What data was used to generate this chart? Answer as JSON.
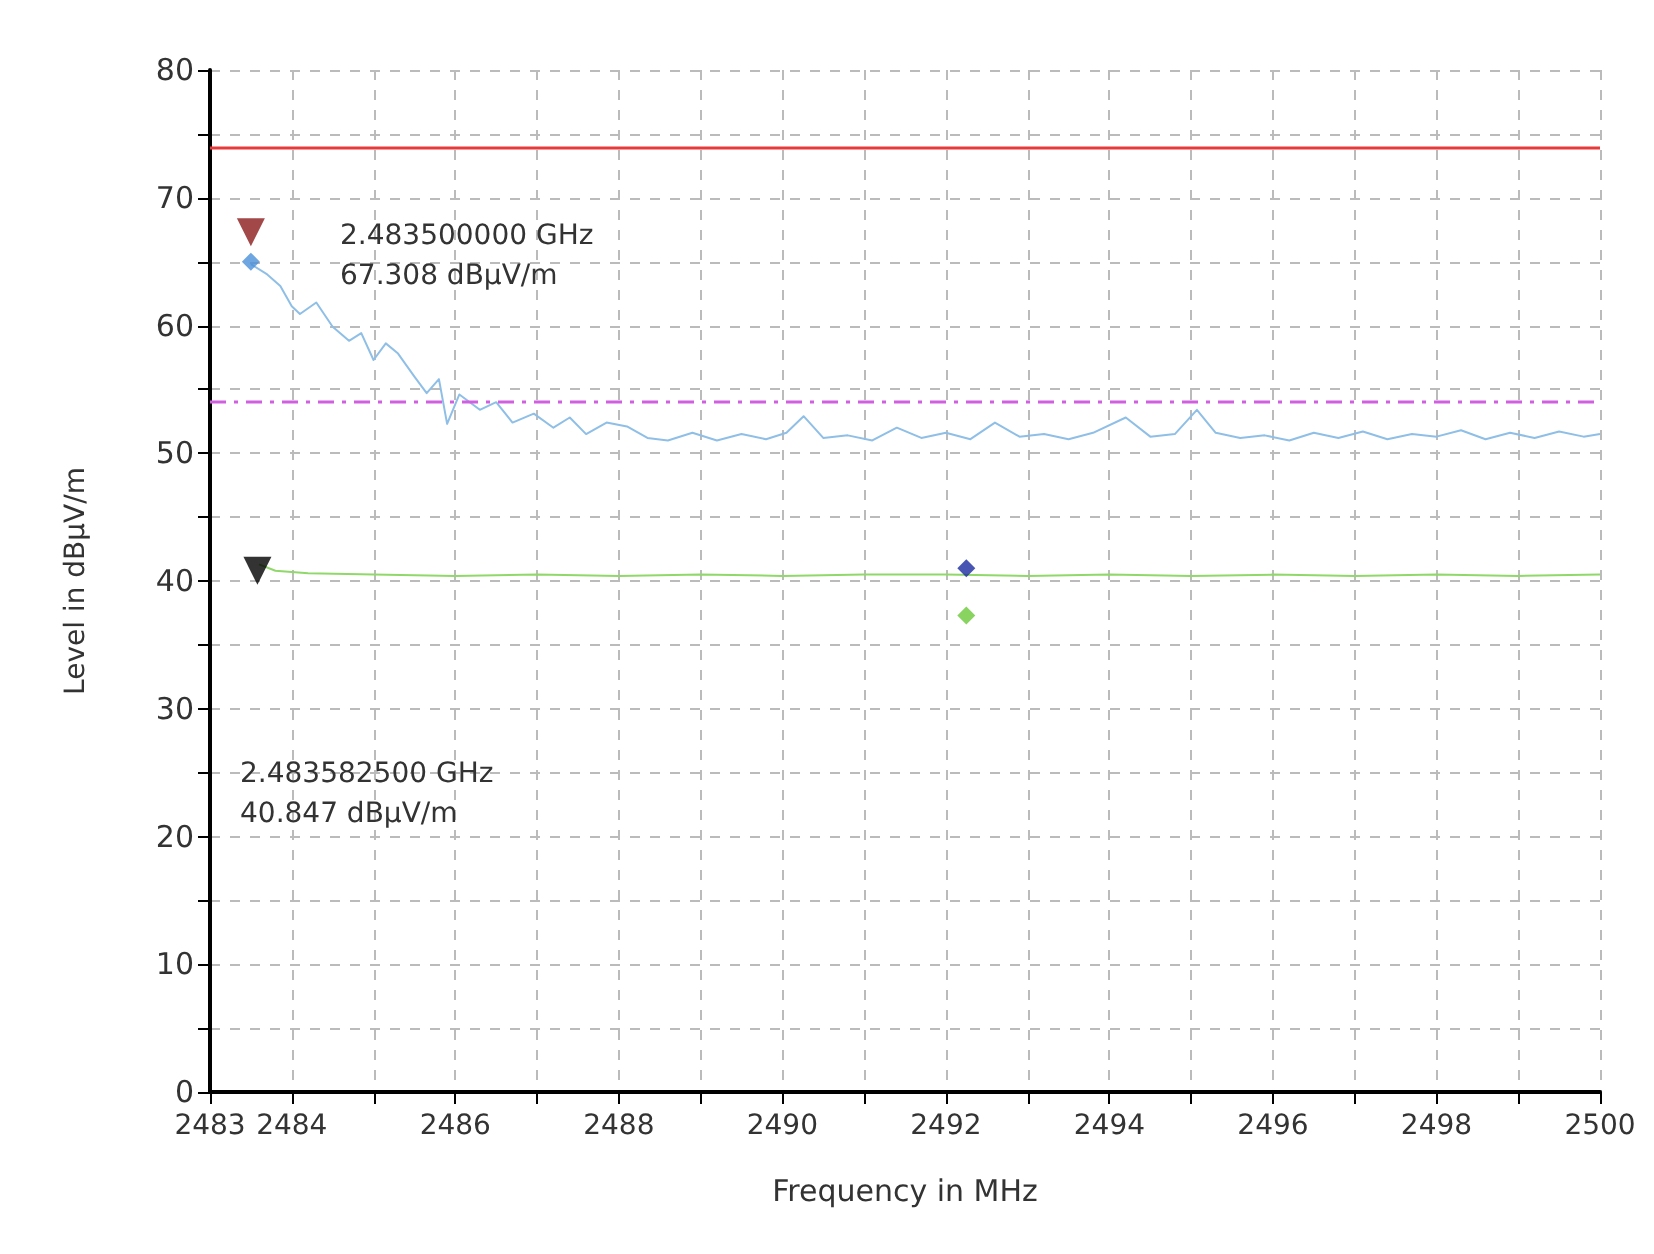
{
  "chart_data": {
    "type": "line",
    "xlabel": "Frequency in MHz",
    "ylabel": "Level in dBµV/m",
    "xlim": [
      2483,
      2500
    ],
    "xticks": [
      2483,
      2484,
      {
        "value": 2485,
        "label": null
      },
      2486,
      {
        "value": 2487,
        "label": null
      },
      2488,
      {
        "value": 2489,
        "label": null
      },
      2490,
      {
        "value": 2491,
        "label": null
      },
      2492,
      {
        "value": 2493,
        "label": null
      },
      2494,
      {
        "value": 2495,
        "label": null
      },
      2496,
      {
        "value": 2497,
        "label": null
      },
      2498,
      {
        "value": 2499,
        "label": null
      },
      2500
    ],
    "ylim": [
      0,
      80
    ],
    "yticks": [
      0,
      {
        "value": 5,
        "label": null
      },
      10,
      {
        "value": 15,
        "label": null
      },
      20,
      {
        "value": 25,
        "label": null
      },
      30,
      {
        "value": 35,
        "label": null
      },
      40,
      {
        "value": 45,
        "label": null
      },
      50,
      {
        "value": 55,
        "label": null
      },
      60,
      {
        "value": 65,
        "label": null
      },
      70,
      {
        "value": 75,
        "label": null
      },
      80
    ],
    "grid": true,
    "marker": "none",
    "line_style": "solid",
    "series": [
      {
        "color": "#8fbfe6",
        "x": [
          2483.5,
          2483.7,
          2483.86,
          2484.0,
          2484.1,
          2484.3,
          2484.5,
          2484.7,
          2484.85,
          2485.0,
          2485.15,
          2485.3,
          2485.5,
          2485.65,
          2485.8,
          2485.9,
          2486.05,
          2486.3,
          2486.5,
          2486.7,
          2486.96,
          2487.2,
          2487.4,
          2487.6,
          2487.85,
          2488.1,
          2488.35,
          2488.6,
          2488.9,
          2489.2,
          2489.5,
          2489.8,
          2490.05,
          2490.26,
          2490.5,
          2490.8,
          2491.1,
          2491.4,
          2491.7,
          2492.0,
          2492.3,
          2492.6,
          2492.9,
          2493.2,
          2493.5,
          2493.8,
          2494.2,
          2494.5,
          2494.8,
          2495.07,
          2495.3,
          2495.6,
          2495.9,
          2496.2,
          2496.5,
          2496.8,
          2497.1,
          2497.4,
          2497.7,
          2498.0,
          2498.3,
          2498.6,
          2498.9,
          2499.2,
          2499.5,
          2499.8,
          2500.0
        ],
        "values": [
          64.8,
          64.0,
          63.1,
          61.5,
          60.9,
          61.8,
          59.9,
          58.8,
          59.4,
          57.3,
          58.6,
          57.8,
          56.0,
          54.7,
          55.8,
          52.3,
          54.6,
          53.4,
          54.0,
          52.4,
          53.1,
          52.0,
          52.8,
          51.5,
          52.4,
          52.1,
          51.2,
          51.0,
          51.6,
          51.0,
          51.5,
          51.1,
          51.6,
          52.9,
          51.2,
          51.4,
          51.0,
          52.0,
          51.2,
          51.6,
          51.1,
          52.4,
          51.3,
          51.5,
          51.1,
          51.6,
          52.8,
          51.3,
          51.5,
          53.4,
          51.6,
          51.2,
          51.4,
          51.0,
          51.6,
          51.2,
          51.7,
          51.1,
          51.5,
          51.3,
          51.8,
          51.1,
          51.6,
          51.2,
          51.7,
          51.3,
          51.5
        ]
      },
      {
        "color": "#90d86a",
        "x": [
          2483.6,
          2483.8,
          2484.2,
          2485,
          2486,
          2487,
          2488,
          2489,
          2490,
          2491,
          2492,
          2493,
          2494,
          2495,
          2496,
          2497,
          2498,
          2499,
          2500
        ],
        "values": [
          41.3,
          40.8,
          40.6,
          40.5,
          40.4,
          40.5,
          40.4,
          40.5,
          40.4,
          40.5,
          40.5,
          40.4,
          40.5,
          40.4,
          40.5,
          40.4,
          40.5,
          40.4,
          40.5
        ]
      },
      {
        "type": "scatter",
        "marker": "triangle",
        "color": "#8b1a1a",
        "x": [
          2483.5
        ],
        "values": [
          67.3
        ]
      },
      {
        "type": "scatter",
        "marker": "triangle",
        "color": "#000000",
        "x": [
          2483.58
        ],
        "values": [
          40.8
        ]
      },
      {
        "type": "scatter",
        "marker": "diamond",
        "color": "#4a90d9",
        "x": [
          2483.5
        ],
        "values": [
          65
        ]
      },
      {
        "type": "scatter",
        "marker": "diamond",
        "color": "#1a2aa0",
        "x": [
          2492.25
        ],
        "values": [
          41
        ]
      },
      {
        "type": "scatter",
        "marker": "diamond",
        "color": "#6cc83a",
        "x": [
          2492.25
        ],
        "values": [
          37.3
        ]
      }
    ],
    "ref_lines": [
      {
        "axis": "y",
        "value": 74,
        "color": "#e83a3a",
        "line_style": "solid"
      },
      {
        "axis": "y",
        "value": 54,
        "color": "#d060e0",
        "line_style": "dashed"
      }
    ],
    "annotations": [
      "2.483500000 GHz\n67.308 dBµV/m",
      "2.483582500 GHz\n40.847 dBµV/m"
    ]
  }
}
